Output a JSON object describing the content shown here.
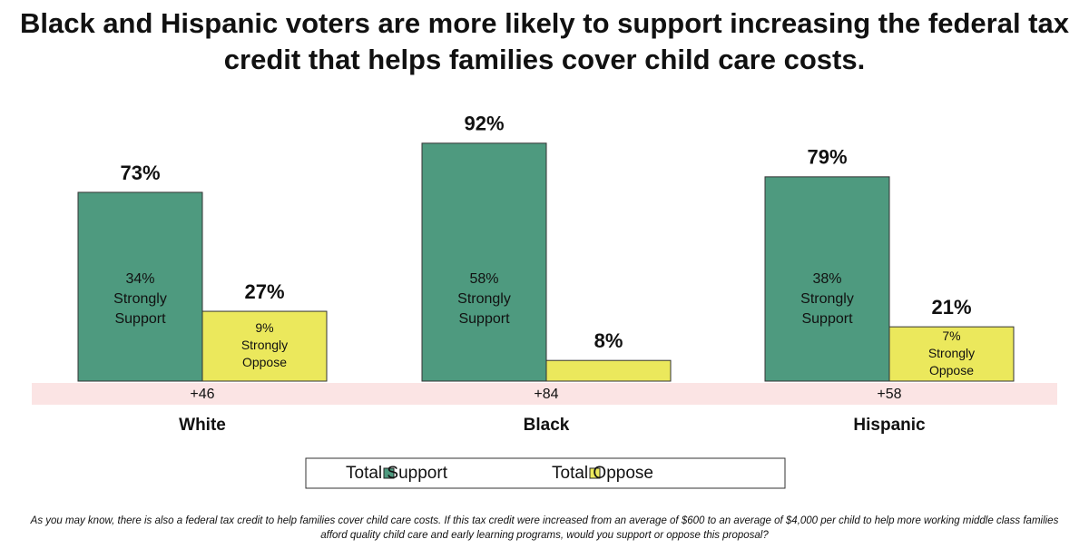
{
  "chart_data": {
    "type": "bar",
    "title": "Black and Hispanic voters are more likely to support increasing the federal tax credit that helps families cover child care costs.",
    "categories": [
      "White",
      "Black",
      "Hispanic"
    ],
    "series": [
      {
        "name": "Total Support",
        "color": "#4e9a7f",
        "values": [
          73,
          92,
          79
        ],
        "value_labels": [
          "73%",
          "92%",
          "79%"
        ],
        "strong_values": [
          34,
          58,
          38
        ],
        "strong_value_labels": [
          "34%",
          "58%",
          "38%"
        ],
        "strong_label": [
          "Strongly",
          "Support"
        ]
      },
      {
        "name": "Total Oppose",
        "color": "#ebe85c",
        "values": [
          27,
          8,
          21
        ],
        "value_labels": [
          "27%",
          "8%",
          "21%"
        ],
        "strong_values": [
          9,
          null,
          7
        ],
        "strong_value_labels": [
          "9%",
          null,
          "7%"
        ],
        "strong_label": [
          "Strongly",
          "Oppose"
        ]
      }
    ],
    "net_values": [
      46,
      84,
      58
    ],
    "net_value_labels": [
      "+46",
      "+84",
      "+58"
    ],
    "footnote": "As you may know, there is also a federal tax credit to help families cover child care costs. If this tax credit were increased from an average of $600 to an average of $4,000 per child to help more working middle class families afford quality child care and early learning programs, would you support or oppose this proposal?"
  }
}
